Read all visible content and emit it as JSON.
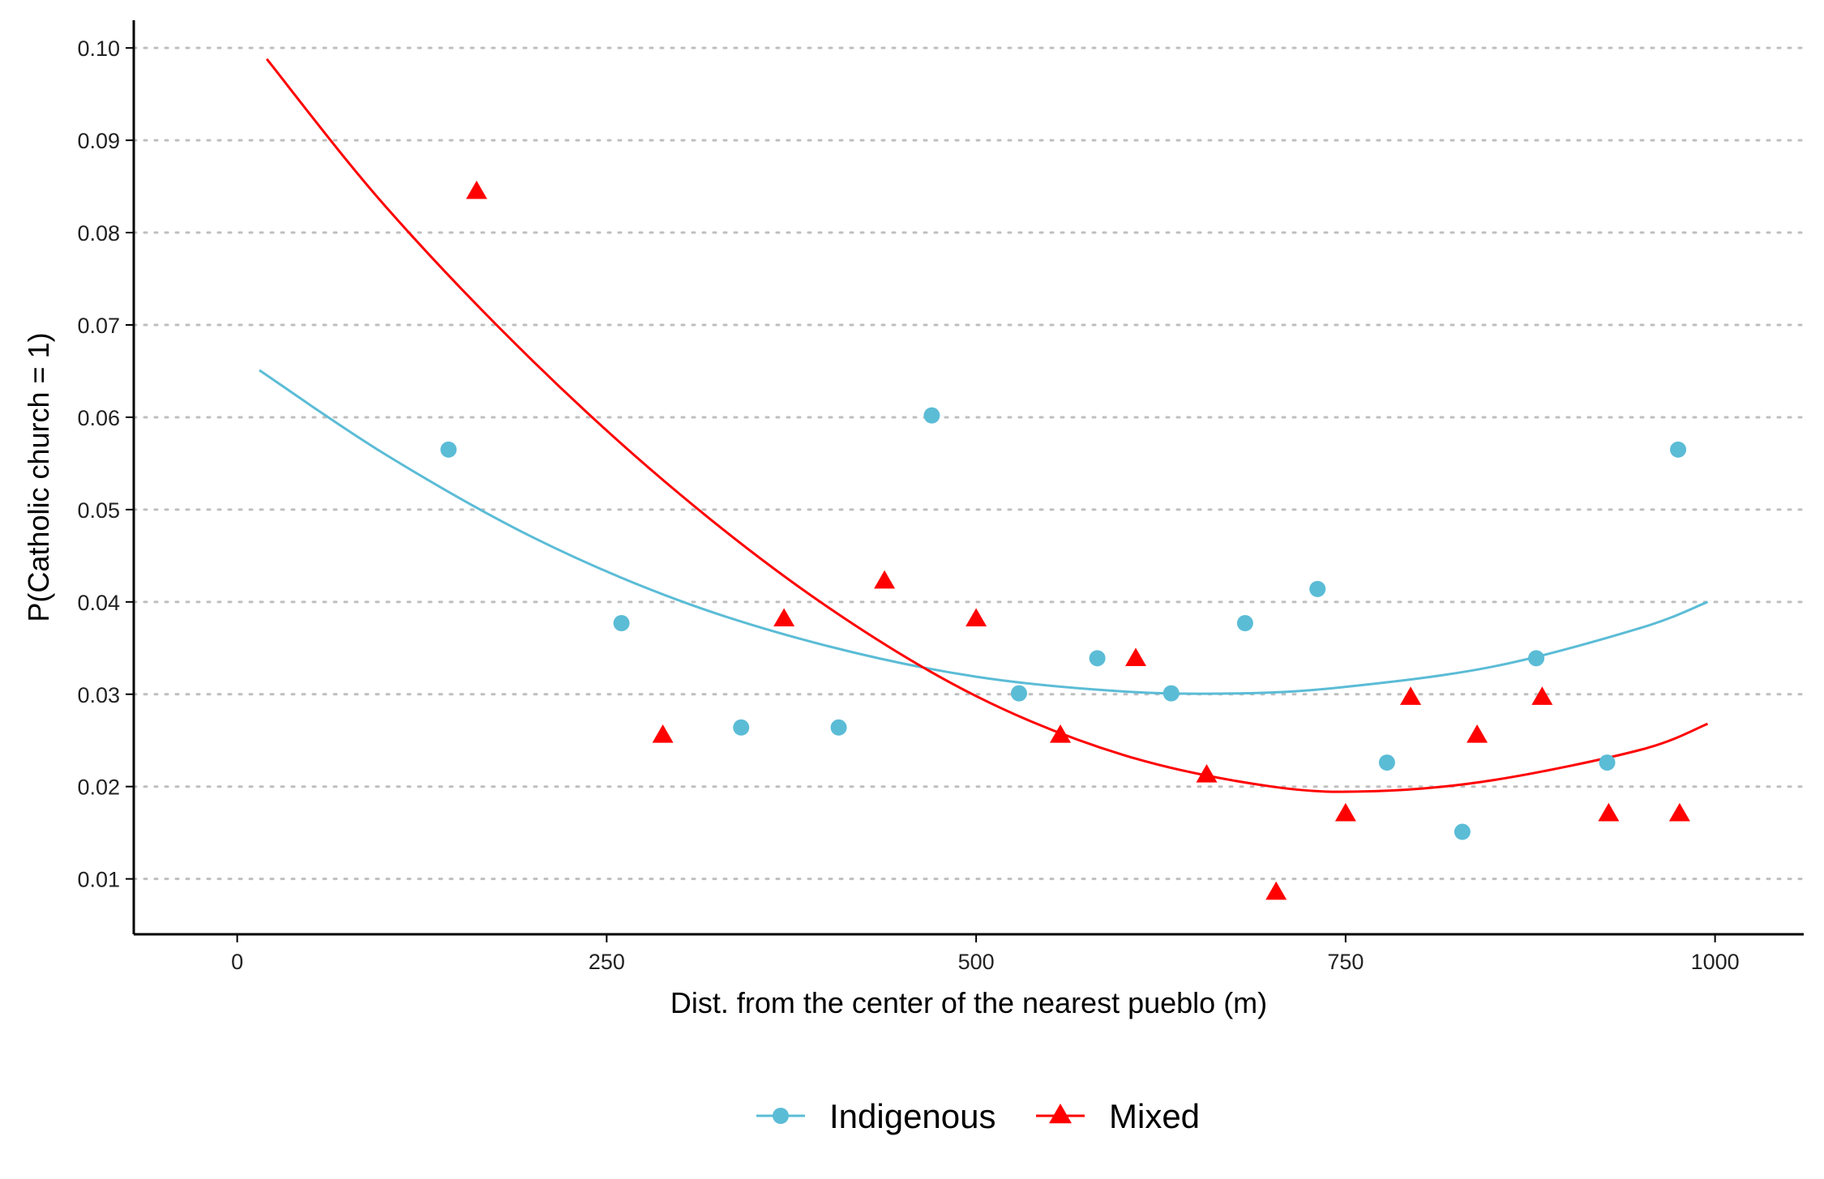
{
  "chart_data": {
    "type": "scatter",
    "title": "",
    "xlabel": "Dist. from the center of the nearest pueblo (m)",
    "ylabel": "P(Catholic church = 1)",
    "xlim": [
      -70,
      1060
    ],
    "ylim": [
      0.004,
      0.103
    ],
    "x_ticks": [
      0,
      250,
      500,
      750,
      1000
    ],
    "x_tick_labels": [
      "0",
      "250",
      "500",
      "750",
      "1000"
    ],
    "y_ticks": [
      0.01,
      0.02,
      0.03,
      0.04,
      0.05,
      0.06,
      0.07,
      0.08,
      0.09,
      0.1
    ],
    "y_tick_labels": [
      "0.01",
      "0.02",
      "0.03",
      "0.04",
      "0.05",
      "0.06",
      "0.07",
      "0.08",
      "0.09",
      "0.10"
    ],
    "grid": "horizontal dotted",
    "legend_position": "bottom",
    "series": [
      {
        "name": "Indigenous",
        "marker": "circle",
        "color": "#5bbcd6",
        "points": [
          [
            143,
            0.0565
          ],
          [
            260,
            0.0377
          ],
          [
            341,
            0.0264
          ],
          [
            407,
            0.0264
          ],
          [
            470,
            0.0602
          ],
          [
            529,
            0.0301
          ],
          [
            582,
            0.0339
          ],
          [
            632,
            0.0301
          ],
          [
            682,
            0.0377
          ],
          [
            731,
            0.0414
          ],
          [
            778,
            0.0226
          ],
          [
            829,
            0.0151
          ],
          [
            879,
            0.0339
          ],
          [
            927,
            0.0226
          ],
          [
            975,
            0.0565
          ]
        ],
        "fit": [
          [
            15,
            0.0651
          ],
          [
            100,
            0.056
          ],
          [
            200,
            0.047
          ],
          [
            300,
            0.0401
          ],
          [
            400,
            0.0352
          ],
          [
            500,
            0.0319
          ],
          [
            600,
            0.0303
          ],
          [
            680,
            0.0301
          ],
          [
            750,
            0.0308
          ],
          [
            850,
            0.033
          ],
          [
            950,
            0.0372
          ],
          [
            995,
            0.04
          ]
        ]
      },
      {
        "name": "Mixed",
        "marker": "triangle",
        "color": "#ff0000",
        "points": [
          [
            162,
            0.0844
          ],
          [
            288,
            0.0255
          ],
          [
            370,
            0.0381
          ],
          [
            438,
            0.0422
          ],
          [
            500,
            0.0381
          ],
          [
            557,
            0.0255
          ],
          [
            608,
            0.0338
          ],
          [
            656,
            0.0212
          ],
          [
            703,
            0.0085
          ],
          [
            750,
            0.017
          ],
          [
            794,
            0.0296
          ],
          [
            839,
            0.0255
          ],
          [
            883,
            0.0296
          ],
          [
            928,
            0.017
          ],
          [
            976,
            0.017
          ]
        ],
        "fit": [
          [
            20,
            0.0988
          ],
          [
            100,
            0.0829
          ],
          [
            200,
            0.0661
          ],
          [
            300,
            0.0516
          ],
          [
            400,
            0.0394
          ],
          [
            500,
            0.0298
          ],
          [
            600,
            0.0234
          ],
          [
            700,
            0.02
          ],
          [
            770,
            0.0195
          ],
          [
            850,
            0.0207
          ],
          [
            950,
            0.024
          ],
          [
            995,
            0.0268
          ]
        ]
      }
    ]
  }
}
